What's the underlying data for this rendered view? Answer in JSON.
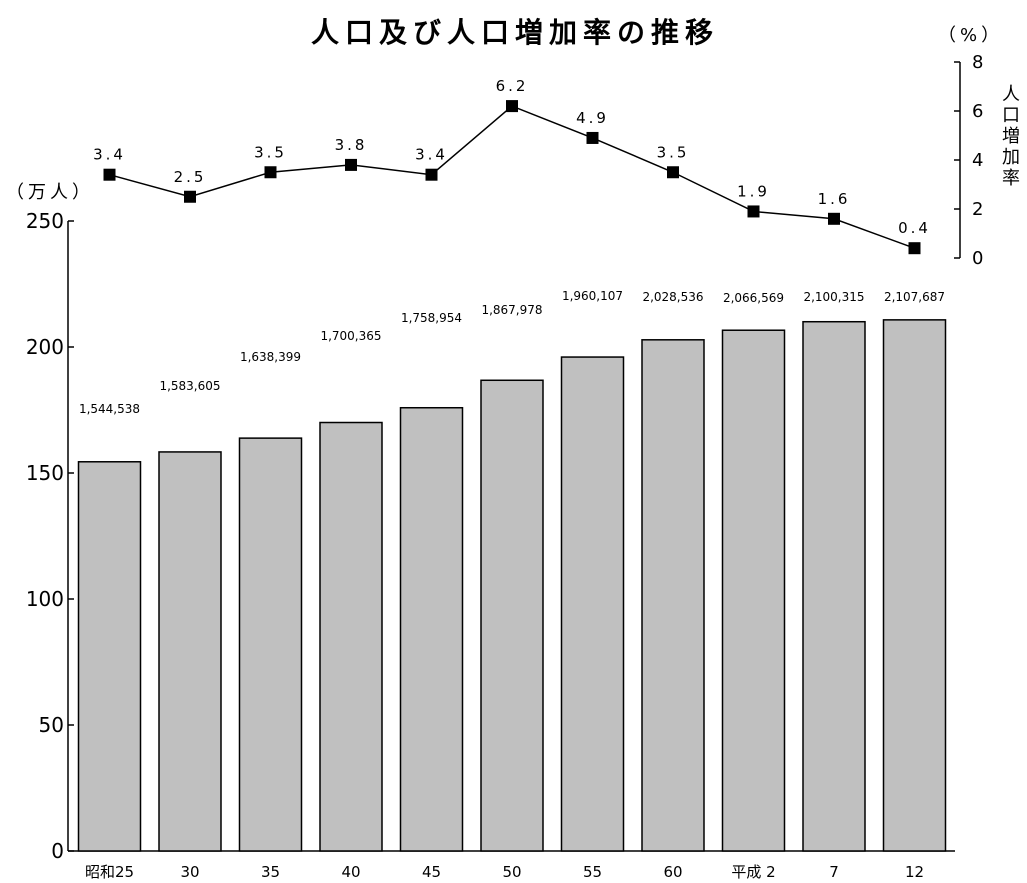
{
  "chart_data": {
    "type": "bar",
    "title": "人口及び人口増加率の推移",
    "categories": [
      "昭和25",
      "30",
      "35",
      "40",
      "45",
      "50",
      "55",
      "60",
      "平成 2",
      "7",
      "12"
    ],
    "series": [
      {
        "type": "bar",
        "axis": "left",
        "values": [
          1544538,
          1583605,
          1638399,
          1700365,
          1758954,
          1867978,
          1960107,
          2028536,
          2066569,
          2100315,
          2107687
        ],
        "labels": [
          "1,544,538",
          "1,583,605",
          "1,638,399",
          "1,700,365",
          "1,758,954",
          "1,867,978",
          "1,960,107",
          "2,028,536",
          "2,066,569",
          "2,100,315",
          "2,107,687"
        ]
      },
      {
        "type": "line",
        "axis": "right",
        "name": "人口増加率",
        "marker": "square",
        "values": [
          3.4,
          2.5,
          3.5,
          3.8,
          3.4,
          6.2,
          4.9,
          3.5,
          1.9,
          1.6,
          0.4
        ],
        "labels": [
          "3.4",
          "2.5",
          "3.5",
          "3.8",
          "3.4",
          "6.2",
          "4.9",
          "3.5",
          "1.9",
          "1.6",
          "0.4"
        ]
      }
    ],
    "y_left": {
      "unit": "（万人）",
      "ylim": [
        0,
        250
      ],
      "ticks": [
        "0",
        "50",
        "100",
        "150",
        "200",
        "250"
      ]
    },
    "y_right": {
      "unit": "（%）",
      "label": "人口増加率",
      "ylim": [
        0,
        8
      ],
      "ticks": [
        "0",
        "2",
        "4",
        "6",
        "8"
      ]
    },
    "grid": false,
    "legend": "none"
  }
}
